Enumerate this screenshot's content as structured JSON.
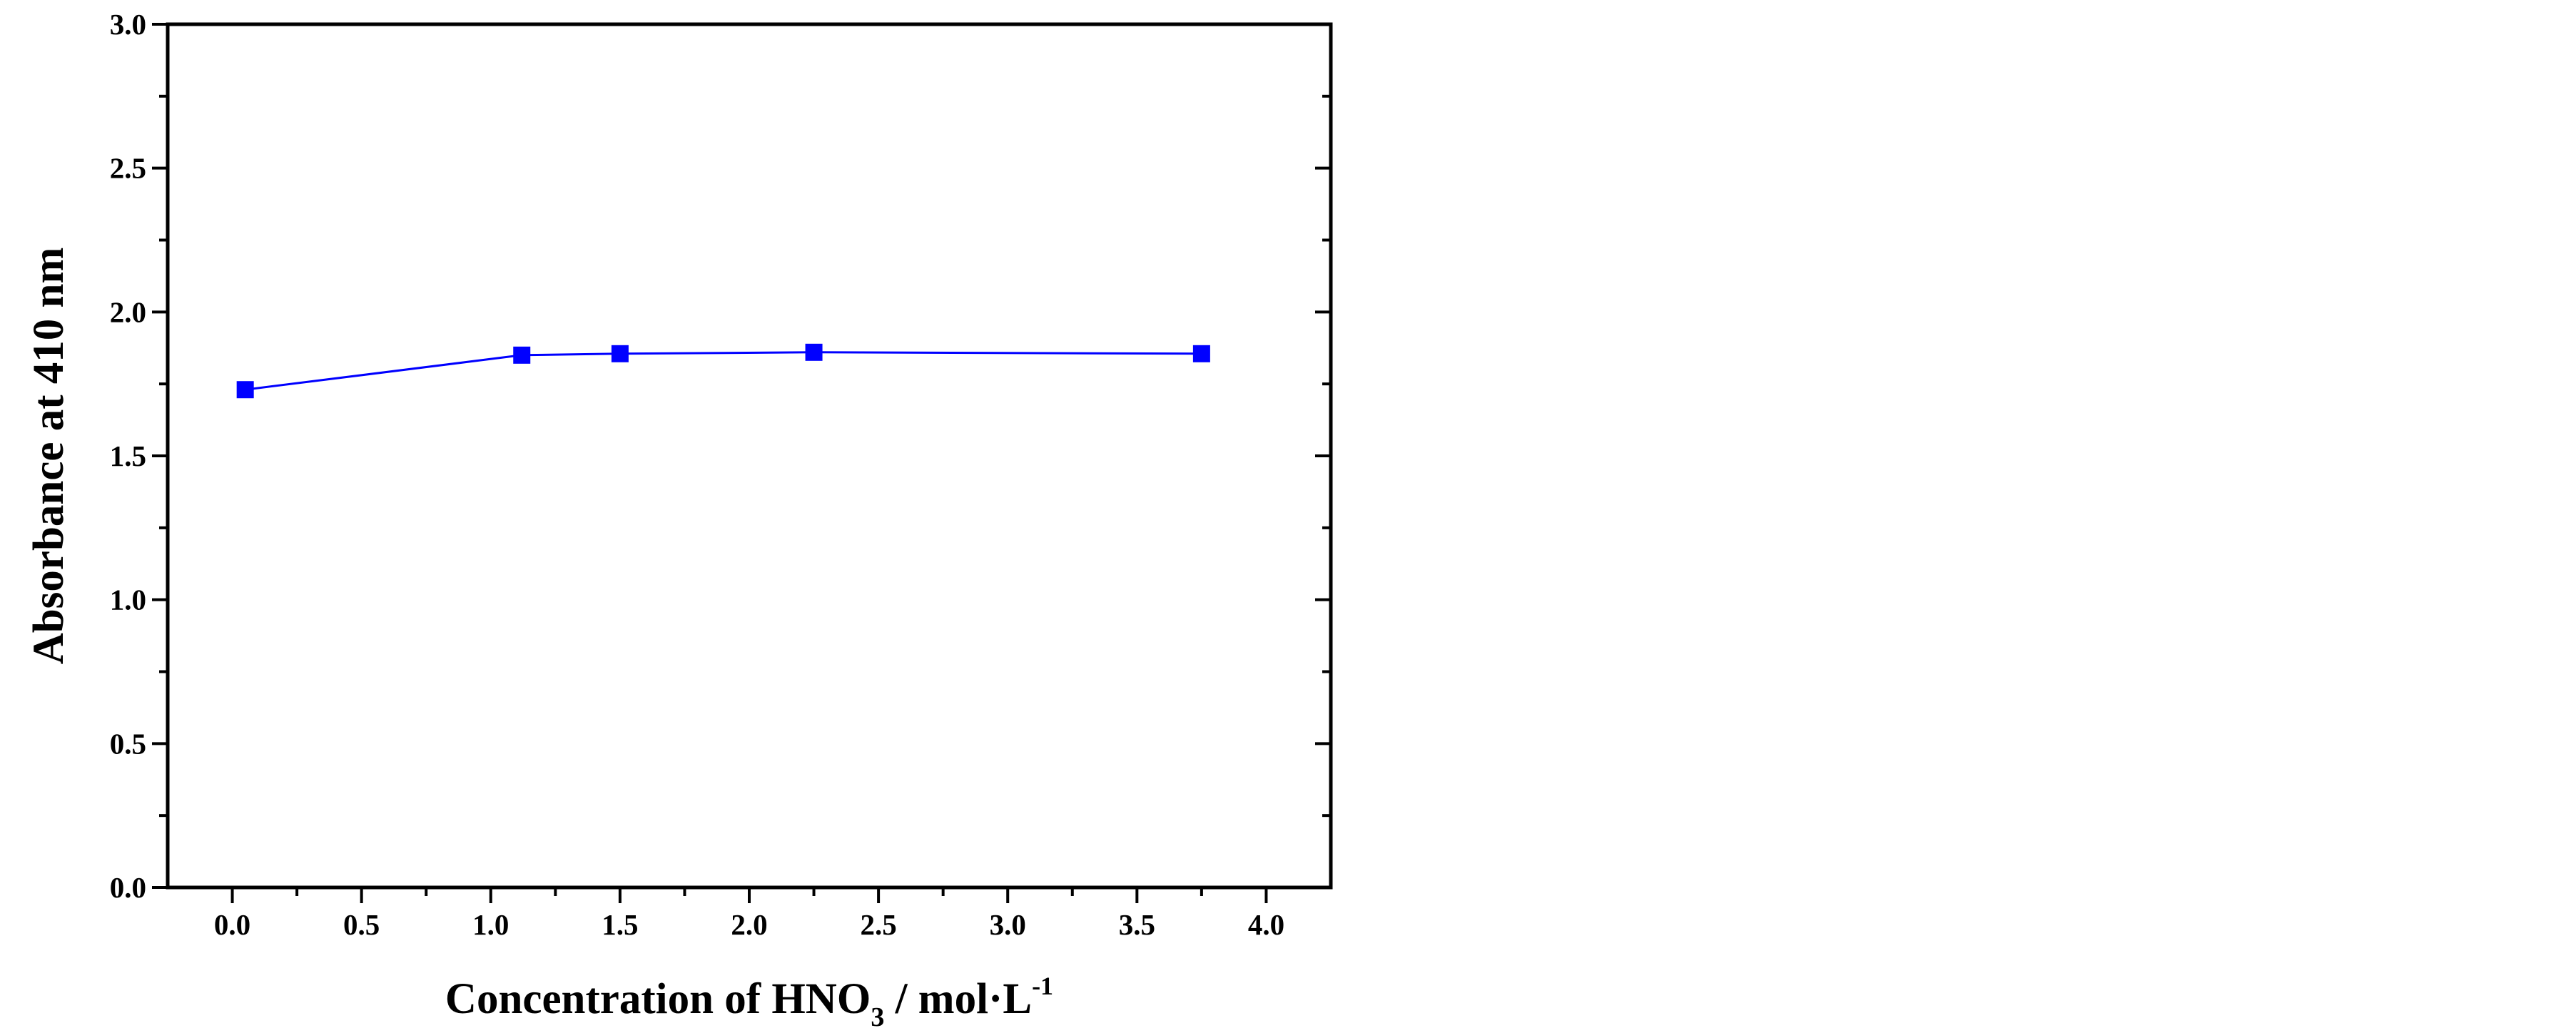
{
  "chart_data": {
    "type": "line",
    "title": "",
    "xlabel": {
      "main": "Concentration of  HNO",
      "subscript": "3",
      "suffix": " / mol·L",
      "superscript": "-1"
    },
    "ylabel": "Absorbance at 410 nm",
    "xlim": [
      -0.25,
      4.25
    ],
    "ylim": [
      0.0,
      3.0
    ],
    "x_ticks": [
      "0.0",
      "0.5",
      "1.0",
      "1.5",
      "2.0",
      "2.5",
      "3.0",
      "3.5",
      "4.0"
    ],
    "y_ticks": [
      "0.0",
      "0.5",
      "1.0",
      "1.5",
      "2.0",
      "2.5",
      "3.0"
    ],
    "series": [
      {
        "color": "#0000ff",
        "marker": "square",
        "x": [
          0.05,
          1.12,
          1.5,
          2.25,
          3.75
        ],
        "y": [
          1.73,
          1.85,
          1.855,
          1.86,
          1.855
        ]
      }
    ],
    "grid": false,
    "legend": "none"
  }
}
